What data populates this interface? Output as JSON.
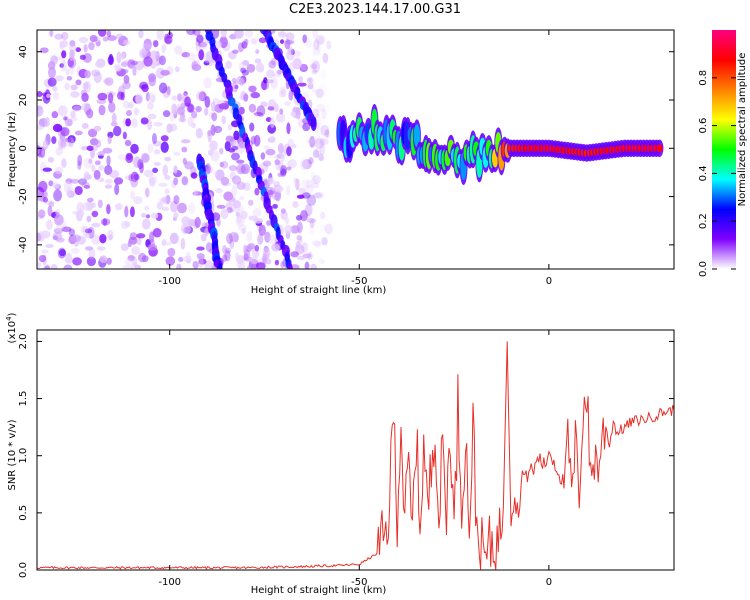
{
  "title": "C2E3.2023.144.17.00.G31",
  "chart_data": [
    {
      "type": "heatmap",
      "xlabel": "Height of straight line (km)",
      "ylabel": "Frequency (Hz)",
      "xlim": [
        -135,
        33
      ],
      "ylim": [
        -50,
        49
      ],
      "xticks": [
        -100,
        -50,
        0
      ],
      "yticks": [
        -40,
        -20,
        0,
        20,
        40
      ],
      "colorbar": {
        "label": "Normalized spectral amplitude",
        "range": [
          0.0,
          1.0
        ],
        "ticks": [
          0.0,
          0.2,
          0.4,
          0.6,
          0.8
        ],
        "tick_labels": [
          "0.0",
          "0.2",
          "0.4",
          "0.6",
          "0.8"
        ],
        "colors": [
          "#ffffff",
          "#7f00ff",
          "#0000ff",
          "#00ffff",
          "#00ff00",
          "#ffff00",
          "#ff8000",
          "#ff0000",
          "#ff0080"
        ]
      },
      "features": {
        "noise_region_x": [
          -135,
          -58
        ],
        "oblique_streaks": [
          {
            "x_start": -90,
            "y_start": 49,
            "x_end": -68,
            "y_end": -50
          },
          {
            "x_start": -75,
            "y_start": 49,
            "x_end": -62,
            "y_end": 10
          },
          {
            "x_start": -92,
            "y_start": -5,
            "x_end": -87,
            "y_end": -50
          }
        ],
        "echo_band": [
          {
            "x": -55,
            "y": 3,
            "amp": 0.3
          },
          {
            "x": -50,
            "y": 6,
            "amp": 0.4
          },
          {
            "x": -46,
            "y": 8,
            "amp": 0.5
          },
          {
            "x": -42,
            "y": 5,
            "amp": 0.45
          },
          {
            "x": -38,
            "y": 3,
            "amp": 0.4
          },
          {
            "x": -34,
            "y": 1,
            "amp": 0.5
          },
          {
            "x": -30,
            "y": -1,
            "amp": 0.45
          },
          {
            "x": -25,
            "y": -3,
            "amp": 0.5
          },
          {
            "x": -20,
            "y": -4,
            "amp": 0.4
          },
          {
            "x": -15,
            "y": -2,
            "amp": 0.55
          },
          {
            "x": -10,
            "y": 0,
            "amp": 0.85
          },
          {
            "x": 0,
            "y": 0,
            "amp": 0.9
          },
          {
            "x": 10,
            "y": -2,
            "amp": 0.85
          },
          {
            "x": 20,
            "y": 0,
            "amp": 0.9
          },
          {
            "x": 30,
            "y": 0,
            "amp": 0.9
          }
        ]
      }
    },
    {
      "type": "line",
      "xlabel": "Height of straight line (km)",
      "ylabel": "SNR (10 * v/v)",
      "y_multiplier": "(x10",
      "y_multiplier_exp": "4",
      "xlim": [
        -135,
        33
      ],
      "ylim": [
        0.0,
        2.1
      ],
      "xticks": [
        -100,
        -50,
        0
      ],
      "yticks": [
        0.0,
        0.5,
        1.0,
        1.5,
        2.0
      ],
      "ytick_labels": [
        "0.0",
        "0.5",
        "1.0",
        "1.5",
        "2.0"
      ],
      "color": "#e8302a",
      "series": [
        {
          "x": [
            -135,
            -120,
            -100,
            -80,
            -65,
            -55,
            -50,
            -45,
            -43,
            -42,
            -41,
            -40,
            -39,
            -38,
            -37,
            -36,
            -35,
            -34,
            -33,
            -32,
            -31,
            -30,
            -29,
            -28,
            -27,
            -26,
            -25,
            -24,
            -23,
            -22,
            -21,
            -20,
            -19,
            -18,
            -17,
            -16,
            -15,
            -14,
            -13,
            -12,
            -11,
            -10,
            -9,
            -8,
            -7,
            -6,
            -5,
            -4,
            -3,
            -2,
            -1,
            0,
            2,
            4,
            5,
            6,
            7,
            8,
            9,
            10,
            11,
            12,
            13,
            14,
            15,
            16,
            17,
            18,
            20,
            22,
            25,
            28,
            30,
            33
          ],
          "values": [
            0.02,
            0.02,
            0.02,
            0.02,
            0.03,
            0.04,
            0.05,
            0.15,
            0.3,
            0.6,
            1.4,
            0.5,
            1.3,
            0.4,
            0.9,
            0.3,
            1.2,
            0.4,
            1.1,
            0.5,
            0.9,
            1.35,
            0.4,
            1.1,
            0.5,
            1.3,
            0.3,
            1.45,
            0.6,
            1.2,
            0.4,
            1.25,
            0.35,
            0.2,
            0.1,
            0.15,
            0.25,
            0.2,
            0.3,
            0.6,
            2.05,
            0.45,
            0.6,
            0.5,
            0.85,
            0.8,
            0.9,
            0.85,
            1.0,
            0.95,
            0.9,
            1.05,
            0.9,
            0.75,
            1.2,
            0.6,
            1.1,
            0.7,
            1.4,
            1.55,
            0.8,
            1.0,
            0.9,
            1.15,
            1.25,
            1.1,
            1.3,
            1.2,
            1.25,
            1.3,
            1.32,
            1.35,
            1.38,
            1.4
          ]
        }
      ]
    }
  ]
}
